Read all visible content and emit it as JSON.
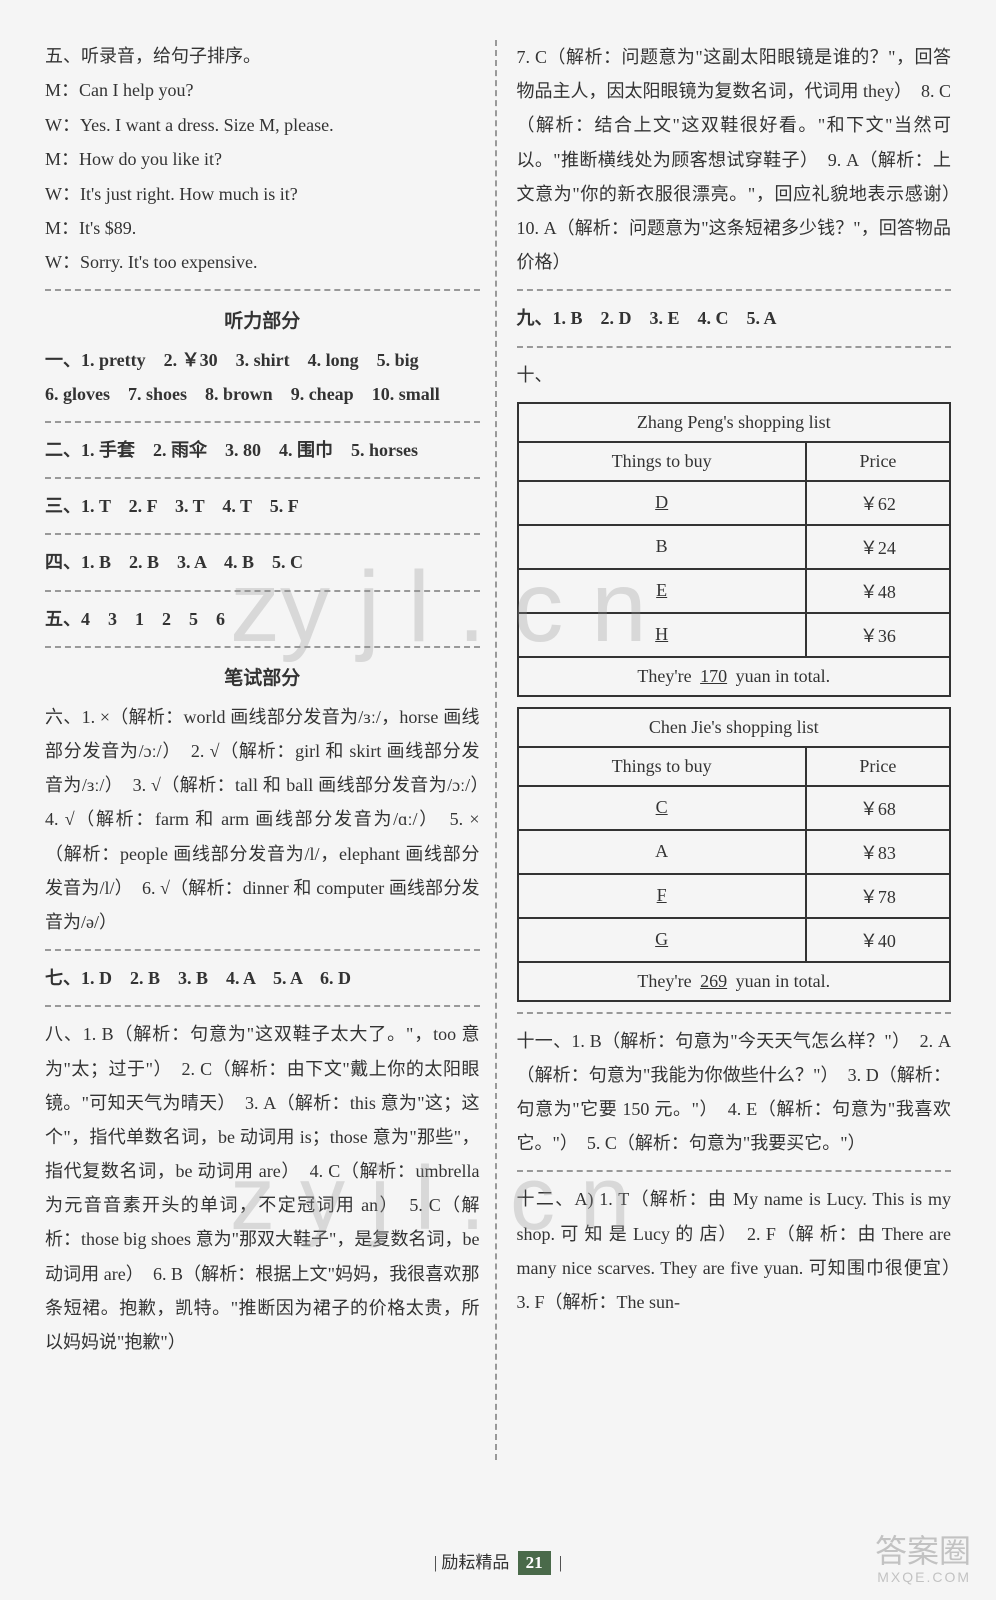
{
  "left": {
    "section5_title": "五、听录音，给句子排序。",
    "dialog": [
      "M：Can I help you?",
      "W：Yes. I want a dress. Size M, please.",
      "M：How do you like it?",
      "W：It's just right. How much is it?",
      "M：It's $89.",
      "W：Sorry. It's too expensive."
    ],
    "listening_title": "听力部分",
    "ans1_prefix": "一、",
    "ans1": "1. pretty　2. ￥30　3. shirt　4. long　5. big",
    "ans1b": "6. gloves　7. shoes　8. brown　9. cheap　10. small",
    "ans2": "二、1. 手套　2. 雨伞　3. 80　4. 围巾　5. horses",
    "ans3": "三、1. T　2. F　3. T　4. T　5. F",
    "ans4": "四、1. B　2. B　3. A　4. B　5. C",
    "ans5": "五、4　3　1　2　5　6",
    "writing_title": "笔试部分",
    "ans6": "六、1. ×（解析：world 画线部分发音为/ɜː/，horse 画线部分发音为/ɔː/）　2. √（解析：girl 和 skirt 画线部分发音为/ɜː/）　3. √（解析：tall 和 ball 画线部分发音为/ɔː/）　4. √（解析：farm 和 arm 画线部分发音为/ɑː/）　5. ×（解析：people 画线部分发音为/l/，elephant 画线部分发音为/l/）　6. √（解析：dinner 和 computer 画线部分发音为/ə/）",
    "ans7": "七、1. D　2. B　3. B　4. A　5. A　6. D",
    "ans8": "八、1. B（解析：句意为\"这双鞋子太大了。\"，too 意为\"太；过于\"）　2. C（解析：由下文\"戴上你的太阳眼镜。\"可知天气为晴天）　3. A（解析：this 意为\"这；这个\"，指代单数名词，be 动词用 is；those 意为\"那些\"，指代复数名词，be 动词用 are）　4. C（解析：umbrella 为元音音素开头的单词，不定冠词用 an）　5. C（解析：those big shoes 意为\"那双大鞋子\"，是复数名词，be 动词用 are）　6. B（解析：根据上文\"妈妈，我很喜欢那条短裙。抱歉，凯特。\"推断因为裙子的价格太贵，所以妈妈说\"抱歉\"）"
  },
  "right": {
    "ans8_cont": "7. C（解析：问题意为\"这副太阳眼镜是谁的？\"，回答物品主人，因太阳眼镜为复数名词，代词用 they）　8. C（解析：结合上文\"这双鞋很好看。\"和下文\"当然可以。\"推断横线处为顾客想试穿鞋子）　9. A（解析：上文意为\"你的新衣服很漂亮。\"，回应礼貌地表示感谢）　10. A（解析：问题意为\"这条短裙多少钱？\"，回答物品价格）",
    "ans9": "九、1. B　2. D　3. E　4. C　5. A",
    "ans10_prefix": "十、",
    "table1": {
      "title": "Zhang Peng's shopping list",
      "col1": "Things to buy",
      "col2": "Price",
      "rows": [
        {
          "item": "D",
          "price": "￥62"
        },
        {
          "item": "B",
          "price": "￥24"
        },
        {
          "item": "E",
          "price": "￥48"
        },
        {
          "item": "H",
          "price": "￥36"
        }
      ],
      "total_pre": "They're ",
      "total_val": "170",
      "total_post": " yuan in total."
    },
    "table2": {
      "title": "Chen Jie's shopping list",
      "col1": "Things to buy",
      "col2": "Price",
      "rows": [
        {
          "item": "C",
          "price": "￥68"
        },
        {
          "item": "A",
          "price": "￥83"
        },
        {
          "item": "F",
          "price": "￥78"
        },
        {
          "item": "G",
          "price": "￥40"
        }
      ],
      "total_pre": "They're ",
      "total_val": "269",
      "total_post": " yuan in total."
    },
    "ans11": "十一、1. B（解析：句意为\"今天天气怎么样？\"）　2. A（解析：句意为\"我能为你做些什么？\"）　3. D（解析：句意为\"它要 150 元。\"）　4. E（解析：句意为\"我喜欢它。\"）　5. C（解析：句意为\"我要买它。\"）",
    "ans12": "十二、A) 1. T（解析：由 My name is Lucy. This is my shop. 可 知 是 Lucy 的 店）　2. F（解 析：由 There are many nice scarves. They are five yuan. 可知围巾很便宜）　3. F（解析：The sun-"
  },
  "footer": {
    "brand": "励耘精品",
    "page": "21"
  },
  "watermark1": "zy j l . c n",
  "watermark2": "z y j l . c n",
  "wm_corner_main": "答案圈",
  "wm_corner_sub": "MXQE.COM"
}
